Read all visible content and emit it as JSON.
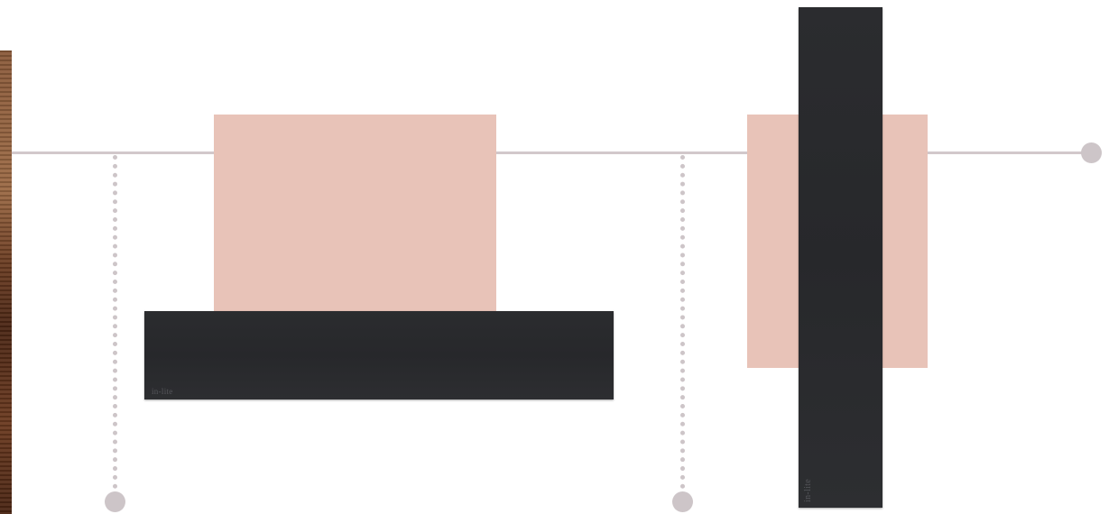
{
  "colors": {
    "background": "#ffffff",
    "line": "#d2c8cb",
    "dot": "#cdc5c8",
    "pink_block": "#e8c3b8",
    "panel": "#2a2b2e",
    "wood": "#6e3f24"
  },
  "panels": {
    "horizontal": {
      "brand": "in-lite"
    },
    "vertical": {
      "brand": "in-lite"
    }
  }
}
